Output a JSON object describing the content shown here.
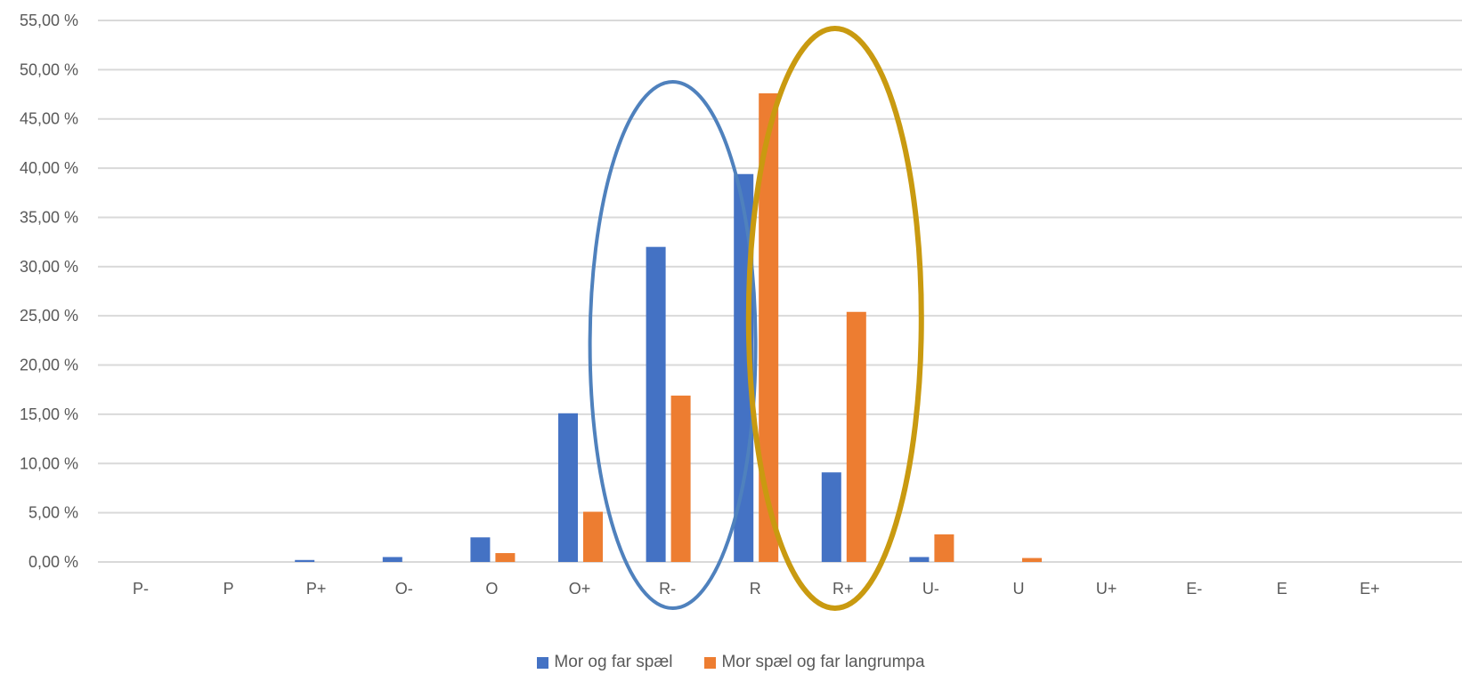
{
  "chart_data": {
    "type": "bar",
    "title": "",
    "xlabel": "",
    "ylabel": "",
    "ylim": [
      0,
      55
    ],
    "y_ticks": [
      "0,00 %",
      "5,00 %",
      "10,00 %",
      "15,00 %",
      "20,00 %",
      "25,00 %",
      "30,00 %",
      "35,00 %",
      "40,00 %",
      "45,00 %",
      "50,00 %",
      "55,00 %"
    ],
    "y_tick_values": [
      0,
      5,
      10,
      15,
      20,
      25,
      30,
      35,
      40,
      45,
      50,
      55
    ],
    "grid": true,
    "legend_position": "bottom",
    "categories": [
      "P-",
      "P",
      "P+",
      "O-",
      "O",
      "O+",
      "R-",
      "R",
      "R+",
      "U-",
      "U",
      "U+",
      "E-",
      "E",
      "E+"
    ],
    "series": [
      {
        "name": "Mor og far spæl",
        "color": "#4472C4",
        "values": [
          0,
          0,
          0.2,
          0.5,
          2.5,
          15.1,
          32.0,
          39.4,
          9.1,
          0.5,
          0,
          0,
          0,
          0,
          0
        ]
      },
      {
        "name": "Mor spæl og far langrumpa",
        "color": "#ED7D31",
        "values": [
          0,
          0,
          0,
          0,
          0.9,
          5.1,
          16.9,
          47.6,
          25.4,
          2.8,
          0.4,
          0,
          0,
          0,
          0
        ]
      }
    ],
    "annotations": [
      {
        "shape": "ellipse",
        "encloses": "R-",
        "color": "#4F81BD"
      },
      {
        "shape": "ellipse",
        "encloses": "R+",
        "color": "#C99A10"
      }
    ]
  }
}
